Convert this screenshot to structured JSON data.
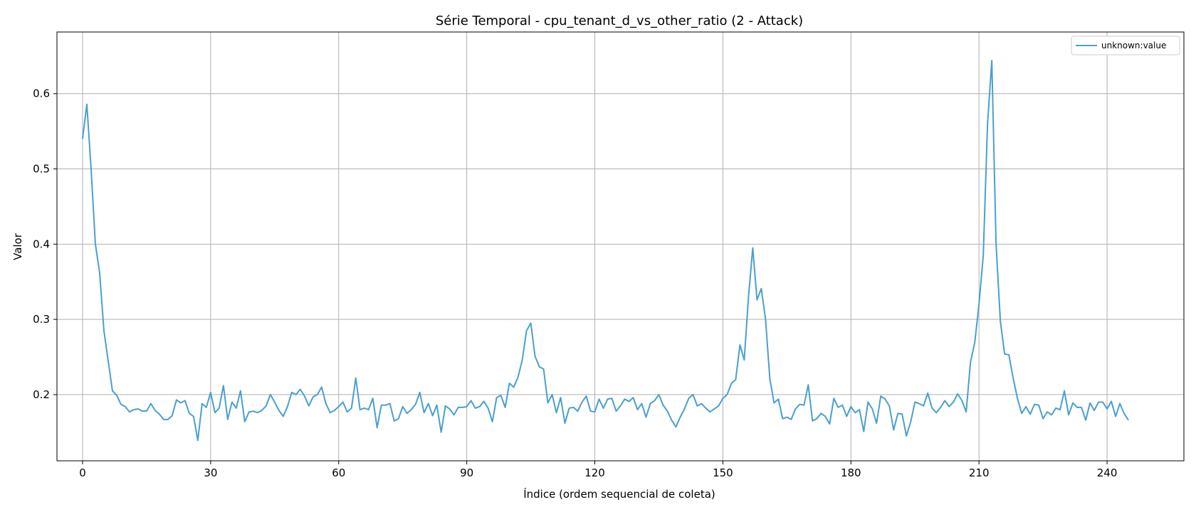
{
  "chart_data": {
    "type": "line",
    "title": "Série Temporal - cpu_tenant_d_vs_other_ratio (2 - Attack)",
    "xlabel": "Índice (ordem sequencial de coleta)",
    "ylabel": "Valor",
    "xlim": [
      -6,
      258
    ],
    "ylim": [
      0.112,
      0.682
    ],
    "xticks": [
      0,
      30,
      60,
      90,
      120,
      150,
      180,
      210,
      240
    ],
    "yticks": [
      0.2,
      0.3,
      0.4,
      0.5,
      0.6
    ],
    "ytick_labels": [
      "0.2",
      "0.3",
      "0.4",
      "0.5",
      "0.6"
    ],
    "grid": true,
    "legend_position": "top-right",
    "series": [
      {
        "name": "unknown:value",
        "color": "#4a9fd0",
        "x": [
          0,
          1,
          2,
          3,
          4,
          5,
          6,
          7,
          8,
          9,
          10,
          11,
          12,
          13,
          14,
          15,
          16,
          17,
          18,
          19,
          20,
          21,
          22,
          23,
          24,
          25,
          26,
          27,
          28,
          29,
          30,
          31,
          32,
          33,
          34,
          35,
          36,
          37,
          38,
          39,
          40,
          41,
          42,
          43,
          44,
          45,
          46,
          47,
          48,
          49,
          50,
          51,
          52,
          53,
          54,
          55,
          56,
          57,
          58,
          59,
          60,
          61,
          62,
          63,
          64,
          65,
          66,
          67,
          68,
          69,
          70,
          71,
          72,
          73,
          74,
          75,
          76,
          77,
          78,
          79,
          80,
          81,
          82,
          83,
          84,
          85,
          86,
          87,
          88,
          89,
          90,
          91,
          92,
          93,
          94,
          95,
          96,
          97,
          98,
          99,
          100,
          101,
          102,
          103,
          104,
          105,
          106,
          107,
          108,
          109,
          110,
          111,
          112,
          113,
          114,
          115,
          116,
          117,
          118,
          119,
          120,
          121,
          122,
          123,
          124,
          125,
          126,
          127,
          128,
          129,
          130,
          131,
          132,
          133,
          134,
          135,
          136,
          137,
          138,
          139,
          140,
          141,
          142,
          143,
          144,
          145,
          146,
          147,
          148,
          149,
          150,
          151,
          152,
          153,
          154,
          155,
          156,
          157,
          158,
          159,
          160,
          161,
          162,
          163,
          164,
          165,
          166,
          167,
          168,
          169,
          170,
          171,
          172,
          173,
          174,
          175,
          176,
          177,
          178,
          179,
          180,
          181,
          182,
          183,
          184,
          185,
          186,
          187,
          188,
          189,
          190,
          191,
          192,
          193,
          194,
          195,
          196,
          197,
          198,
          199,
          200,
          201,
          202,
          203,
          204,
          205,
          206,
          207,
          208,
          209,
          210,
          211,
          212,
          213,
          214,
          215,
          216,
          217,
          218,
          219,
          220,
          221,
          222,
          223,
          224,
          225,
          226,
          227,
          228,
          229,
          230,
          231,
          232,
          233,
          234,
          235,
          236,
          237,
          238,
          239,
          240,
          241,
          242,
          243,
          244,
          245
        ],
        "y": [
          0.54,
          0.586,
          0.5,
          0.4,
          0.362,
          0.285,
          0.245,
          0.205,
          0.199,
          0.187,
          0.184,
          0.177,
          0.18,
          0.181,
          0.178,
          0.178,
          0.188,
          0.179,
          0.174,
          0.167,
          0.167,
          0.172,
          0.193,
          0.189,
          0.192,
          0.175,
          0.171,
          0.139,
          0.188,
          0.183,
          0.203,
          0.176,
          0.182,
          0.212,
          0.167,
          0.19,
          0.182,
          0.205,
          0.164,
          0.177,
          0.178,
          0.176,
          0.179,
          0.185,
          0.2,
          0.19,
          0.179,
          0.171,
          0.184,
          0.203,
          0.2,
          0.207,
          0.198,
          0.185,
          0.197,
          0.2,
          0.21,
          0.188,
          0.176,
          0.179,
          0.184,
          0.19,
          0.177,
          0.182,
          0.222,
          0.18,
          0.182,
          0.18,
          0.195,
          0.156,
          0.186,
          0.186,
          0.188,
          0.165,
          0.168,
          0.184,
          0.175,
          0.18,
          0.187,
          0.203,
          0.176,
          0.188,
          0.172,
          0.186,
          0.15,
          0.185,
          0.181,
          0.173,
          0.183,
          0.183,
          0.184,
          0.192,
          0.182,
          0.184,
          0.191,
          0.182,
          0.164,
          0.196,
          0.199,
          0.183,
          0.215,
          0.21,
          0.223,
          0.246,
          0.285,
          0.295,
          0.251,
          0.237,
          0.234,
          0.189,
          0.2,
          0.176,
          0.196,
          0.162,
          0.182,
          0.183,
          0.178,
          0.19,
          0.198,
          0.178,
          0.177,
          0.194,
          0.182,
          0.194,
          0.195,
          0.178,
          0.185,
          0.194,
          0.191,
          0.196,
          0.18,
          0.188,
          0.17,
          0.188,
          0.192,
          0.2,
          0.186,
          0.178,
          0.166,
          0.157,
          0.17,
          0.181,
          0.195,
          0.2,
          0.185,
          0.188,
          0.182,
          0.177,
          0.181,
          0.185,
          0.195,
          0.2,
          0.215,
          0.22,
          0.266,
          0.246,
          0.33,
          0.395,
          0.326,
          0.341,
          0.3,
          0.221,
          0.189,
          0.194,
          0.168,
          0.17,
          0.167,
          0.181,
          0.187,
          0.186,
          0.213,
          0.165,
          0.168,
          0.175,
          0.171,
          0.161,
          0.195,
          0.183,
          0.186,
          0.171,
          0.184,
          0.176,
          0.18,
          0.151,
          0.19,
          0.181,
          0.162,
          0.198,
          0.194,
          0.185,
          0.153,
          0.175,
          0.174,
          0.145,
          0.164,
          0.19,
          0.188,
          0.185,
          0.202,
          0.182,
          0.176,
          0.183,
          0.192,
          0.184,
          0.19,
          0.201,
          0.192,
          0.177,
          0.243,
          0.269,
          0.32,
          0.385,
          0.56,
          0.644,
          0.4,
          0.298,
          0.254,
          0.253,
          0.222,
          0.195,
          0.175,
          0.184,
          0.174,
          0.187,
          0.186,
          0.168,
          0.177,
          0.173,
          0.182,
          0.18,
          0.205,
          0.173,
          0.189,
          0.183,
          0.183,
          0.166,
          0.189,
          0.179,
          0.19,
          0.19,
          0.181,
          0.191,
          0.171,
          0.188,
          0.175,
          0.166
        ]
      }
    ]
  }
}
